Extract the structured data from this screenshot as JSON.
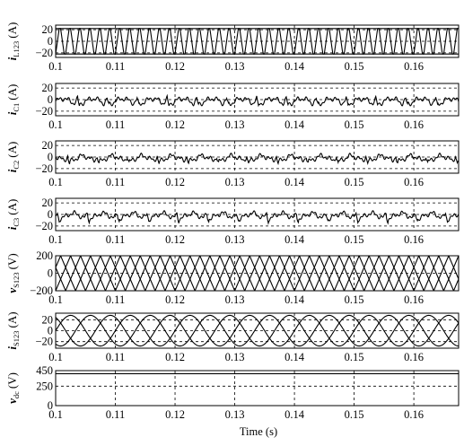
{
  "chart_data": {
    "type": "line",
    "xlabel": "Time (s)",
    "xlim": [
      0.1,
      0.1675
    ],
    "xticks": [
      0.1,
      0.11,
      0.12,
      0.13,
      0.14,
      0.15,
      0.16
    ],
    "xtick_labels": [
      "0.1",
      "0.11",
      "0.12",
      "0.13",
      "0.14",
      "0.15",
      "0.16"
    ],
    "grid": "dashed",
    "panels": [
      {
        "id": "iL123",
        "ylabel_main": "i",
        "ylabel_sub": "L123",
        "ylabel_unit": "(A)",
        "ylim": [
          -28,
          28
        ],
        "yticks": [
          20,
          0,
          -20
        ],
        "ytick_labels": [
          "20",
          "0",
          "−20"
        ],
        "series": [
          {
            "kind": "square",
            "amplitude": 22,
            "freq_hz": 200,
            "phase_deg": 0,
            "edge_ratio": 0.12
          },
          {
            "kind": "square",
            "amplitude": 22,
            "freq_hz": 200,
            "phase_deg": 120,
            "edge_ratio": 0.12
          },
          {
            "kind": "square",
            "amplitude": 22,
            "freq_hz": 200,
            "phase_deg": 240,
            "edge_ratio": 0.12
          }
        ]
      },
      {
        "id": "iC1",
        "ylabel_main": "i",
        "ylabel_sub": "C1",
        "ylabel_unit": "(A)",
        "ylim": [
          -28,
          28
        ],
        "yticks": [
          20,
          0,
          -20
        ],
        "ytick_labels": [
          "20",
          "0",
          "−20"
        ],
        "series": [
          {
            "kind": "ripple",
            "amplitude": 7,
            "freq_hz": 200,
            "phase_deg": 0,
            "spike_amp": 10
          }
        ]
      },
      {
        "id": "iC2",
        "ylabel_main": "i",
        "ylabel_sub": "C2",
        "ylabel_unit": "(A)",
        "ylim": [
          -28,
          28
        ],
        "yticks": [
          20,
          0,
          -20
        ],
        "ytick_labels": [
          "20",
          "0",
          "−20"
        ],
        "series": [
          {
            "kind": "ripple",
            "amplitude": 7,
            "freq_hz": 200,
            "phase_deg": 120,
            "spike_amp": 10
          }
        ]
      },
      {
        "id": "iC3",
        "ylabel_main": "i",
        "ylabel_sub": "C3",
        "ylabel_unit": "(A)",
        "ylim": [
          -28,
          28
        ],
        "yticks": [
          20,
          0,
          -20
        ],
        "ytick_labels": [
          "20",
          "0",
          "−20"
        ],
        "series": [
          {
            "kind": "ripple",
            "amplitude": 7,
            "freq_hz": 200,
            "phase_deg": 240,
            "spike_amp": 10
          }
        ]
      },
      {
        "id": "vS123",
        "ylabel_main": "v",
        "ylabel_sub": "S123",
        "ylabel_unit": "(V)",
        "ylim": [
          -200,
          200
        ],
        "yticks": [
          200,
          0,
          -200
        ],
        "ytick_labels": [
          "200",
          "0",
          "−200"
        ],
        "series": [
          {
            "kind": "tri",
            "amplitude": 200,
            "freq_hz": 200,
            "phase_deg": 0
          },
          {
            "kind": "tri",
            "amplitude": 200,
            "freq_hz": 200,
            "phase_deg": 120
          },
          {
            "kind": "tri",
            "amplitude": 200,
            "freq_hz": 200,
            "phase_deg": 240
          }
        ]
      },
      {
        "id": "iS123",
        "ylabel_main": "i",
        "ylabel_sub": "S123",
        "ylabel_unit": "(A)",
        "ylim": [
          -32,
          32
        ],
        "yticks": [
          20,
          0,
          -20
        ],
        "ytick_labels": [
          "20",
          "0",
          "−20"
        ],
        "series": [
          {
            "kind": "sine",
            "amplitude": 28,
            "freq_hz": 100,
            "phase_deg": 0
          },
          {
            "kind": "sine",
            "amplitude": 28,
            "freq_hz": 100,
            "phase_deg": 120
          },
          {
            "kind": "sine",
            "amplitude": 28,
            "freq_hz": 100,
            "phase_deg": 240
          }
        ]
      },
      {
        "id": "vdc",
        "ylabel_main": "v",
        "ylabel_sub": "dc",
        "ylabel_unit": "(V)",
        "ylim": [
          0,
          450
        ],
        "yticks": [
          450,
          250,
          0
        ],
        "ytick_labels": [
          "450",
          "250",
          "0"
        ],
        "series": [
          {
            "kind": "const",
            "value": 410
          }
        ]
      }
    ]
  }
}
